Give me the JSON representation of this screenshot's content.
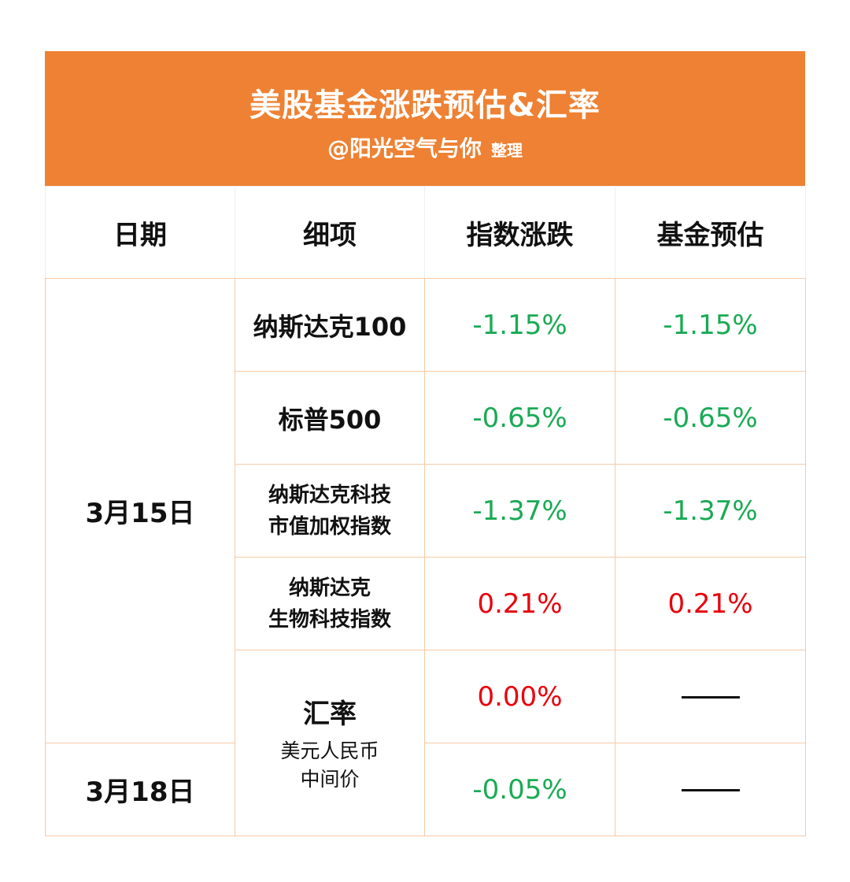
{
  "header": {
    "title": "美股基金涨跌预估&汇率",
    "author": "@阳光空气与你",
    "author_suffix": "整理"
  },
  "table": {
    "columns": [
      "日期",
      "细项",
      "指数涨跌",
      "基金预估"
    ],
    "rows": [
      {
        "date": "3月15日",
        "item": "纳斯达克100",
        "index_change": "-1.15%",
        "fund_estimate": "-1.15%"
      },
      {
        "item_line1": "标普500",
        "index_change": "-0.65%",
        "fund_estimate": "-0.65%"
      },
      {
        "item_line1": "纳斯达克科技",
        "item_line2": "市值加权指数",
        "index_change": "-1.37%",
        "fund_estimate": "-1.37%"
      },
      {
        "item_line1": "纳斯达克",
        "item_line2": "生物科技指数",
        "index_change": "0.21%",
        "fund_estimate": "0.21%"
      },
      {
        "item_main": "汇率",
        "item_sub1": "美元人民币",
        "item_sub2": "中间价",
        "index_change": "0.00%",
        "fund_estimate": "——"
      },
      {
        "date": "3月18日",
        "index_change": "-0.05%",
        "fund_estimate": "——"
      }
    ]
  },
  "colors": {
    "header_bg": "#ee8133",
    "negative": "#1aaa55",
    "positive": "#e8000b"
  }
}
